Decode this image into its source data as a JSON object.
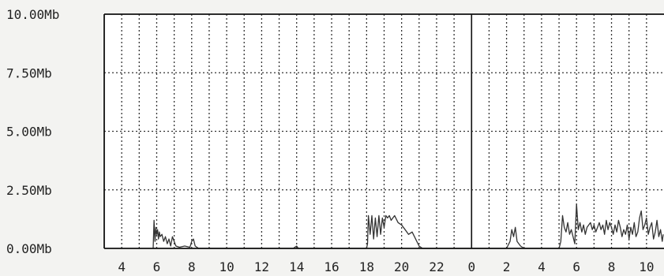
{
  "chart_data": {
    "type": "line",
    "title": "",
    "xlabel": "",
    "ylabel": "",
    "y_unit": "Mb",
    "ylim": [
      0,
      10
    ],
    "y_ticks": [
      "0.00Mb",
      "2.50Mb",
      "5.00Mb",
      "7.50Mb",
      "10.00Mb"
    ],
    "y_tick_values": [
      0,
      2.5,
      5,
      7.5,
      10
    ],
    "x_ticks": [
      "4",
      "6",
      "8",
      "10",
      "12",
      "14",
      "16",
      "18",
      "20",
      "22",
      "0",
      "2",
      "4",
      "6",
      "8",
      "10"
    ],
    "x_range_hours": [
      3,
      35
    ],
    "day_boundary_hour": 24,
    "grid": "dotted",
    "colors": {
      "line": "#333333",
      "frame": "#111111",
      "background": "#ffffff",
      "page": "#f3f3f1"
    },
    "series": [
      {
        "values": [
          [
            5.8,
            0
          ],
          [
            5.85,
            1.2
          ],
          [
            5.9,
            0.3
          ],
          [
            5.95,
            0.9
          ],
          [
            6.0,
            0.6
          ],
          [
            6.05,
            0.8
          ],
          [
            6.1,
            0.4
          ],
          [
            6.15,
            0.7
          ],
          [
            6.2,
            0.5
          ],
          [
            6.3,
            0.6
          ],
          [
            6.4,
            0.3
          ],
          [
            6.5,
            0.5
          ],
          [
            6.6,
            0.2
          ],
          [
            6.7,
            0.4
          ],
          [
            6.8,
            0.1
          ],
          [
            6.9,
            0.5
          ],
          [
            7.0,
            0.3
          ],
          [
            7.1,
            0.1
          ],
          [
            7.3,
            0.05
          ],
          [
            7.6,
            0.1
          ],
          [
            7.9,
            0.05
          ],
          [
            8.0,
            0.3
          ],
          [
            8.1,
            0.4
          ],
          [
            8.2,
            0.1
          ],
          [
            8.4,
            0.0
          ],
          [
            12.0,
            0.0
          ],
          [
            13.8,
            0.0
          ],
          [
            14.0,
            0.1
          ],
          [
            14.1,
            0.0
          ],
          [
            18.0,
            0.0
          ],
          [
            18.05,
            0.2
          ],
          [
            18.1,
            1.4
          ],
          [
            18.2,
            0.6
          ],
          [
            18.3,
            1.4
          ],
          [
            18.4,
            0.4
          ],
          [
            18.5,
            1.3
          ],
          [
            18.6,
            0.5
          ],
          [
            18.7,
            1.4
          ],
          [
            18.8,
            0.6
          ],
          [
            18.9,
            1.3
          ],
          [
            19.0,
            0.9
          ],
          [
            19.1,
            1.4
          ],
          [
            19.2,
            1.3
          ],
          [
            19.3,
            1.4
          ],
          [
            19.4,
            1.2
          ],
          [
            19.6,
            1.4
          ],
          [
            19.8,
            1.1
          ],
          [
            20.0,
            1.0
          ],
          [
            20.2,
            0.8
          ],
          [
            20.4,
            0.6
          ],
          [
            20.6,
            0.7
          ],
          [
            20.8,
            0.4
          ],
          [
            21.0,
            0.1
          ],
          [
            21.2,
            0.0
          ],
          [
            26.0,
            0.0
          ],
          [
            26.2,
            0.3
          ],
          [
            26.3,
            0.8
          ],
          [
            26.4,
            0.5
          ],
          [
            26.5,
            0.9
          ],
          [
            26.6,
            0.3
          ],
          [
            26.8,
            0.1
          ],
          [
            27.0,
            0.0
          ],
          [
            29.0,
            0.0
          ],
          [
            29.1,
            0.3
          ],
          [
            29.2,
            1.4
          ],
          [
            29.3,
            0.9
          ],
          [
            29.4,
            0.7
          ],
          [
            29.5,
            1.1
          ],
          [
            29.6,
            0.6
          ],
          [
            29.7,
            0.8
          ],
          [
            29.8,
            0.5
          ],
          [
            29.9,
            0.2
          ],
          [
            30.0,
            1.9
          ],
          [
            30.1,
            0.8
          ],
          [
            30.2,
            1.1
          ],
          [
            30.3,
            0.7
          ],
          [
            30.4,
            1.0
          ],
          [
            30.5,
            0.6
          ],
          [
            30.6,
            0.9
          ],
          [
            30.7,
            1.0
          ],
          [
            30.8,
            1.1
          ],
          [
            30.9,
            0.8
          ],
          [
            31.0,
            1.0
          ],
          [
            31.1,
            0.7
          ],
          [
            31.2,
            0.9
          ],
          [
            31.3,
            1.1
          ],
          [
            31.4,
            0.8
          ],
          [
            31.5,
            1.0
          ],
          [
            31.6,
            0.6
          ],
          [
            31.7,
            1.2
          ],
          [
            31.8,
            0.8
          ],
          [
            31.9,
            1.1
          ],
          [
            32.0,
            0.9
          ],
          [
            32.1,
            0.6
          ],
          [
            32.2,
            1.0
          ],
          [
            32.3,
            0.7
          ],
          [
            32.4,
            1.2
          ],
          [
            32.5,
            0.9
          ],
          [
            32.6,
            0.5
          ],
          [
            32.7,
            0.8
          ],
          [
            32.8,
            0.6
          ],
          [
            32.9,
            1.0
          ],
          [
            33.0,
            0.4
          ],
          [
            33.1,
            0.9
          ],
          [
            33.2,
            0.6
          ],
          [
            33.3,
            1.1
          ],
          [
            33.4,
            0.5
          ],
          [
            33.5,
            0.7
          ],
          [
            33.6,
            1.3
          ],
          [
            33.7,
            1.6
          ],
          [
            33.8,
            0.8
          ],
          [
            33.9,
            1.0
          ],
          [
            34.0,
            1.3
          ],
          [
            34.1,
            0.6
          ],
          [
            34.2,
            0.9
          ],
          [
            34.3,
            1.1
          ],
          [
            34.4,
            0.4
          ],
          [
            34.5,
            0.7
          ],
          [
            34.6,
            1.2
          ],
          [
            34.7,
            0.5
          ],
          [
            34.8,
            0.8
          ],
          [
            34.9,
            0.3
          ],
          [
            35.0,
            0.6
          ]
        ]
      }
    ]
  }
}
